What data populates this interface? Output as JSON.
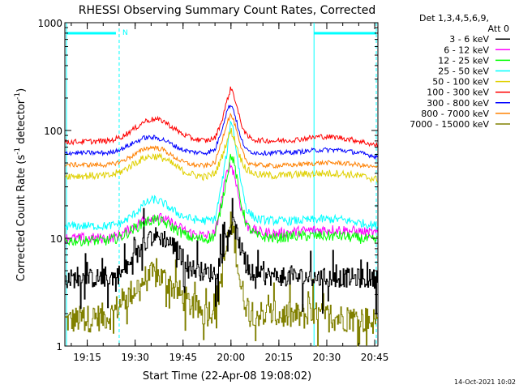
{
  "chart_data": {
    "type": "line",
    "title": "RHESSI Observing Summary Count Rates, Corrected",
    "xlabel": "Start Time (22-Apr-08 19:08:02)",
    "ylabel_main": "Corrected Count Rate (s",
    "ylabel_mid": " detector",
    "ylabel_sup": "-1",
    "ylabel_end": ")",
    "footer": "14-Oct-2021 10:02",
    "yscale": "log",
    "ylim": [
      1,
      1000
    ],
    "xlim_minutes": [
      0,
      98
    ],
    "y_ticks": [
      {
        "value": 1,
        "label": "1"
      },
      {
        "value": 10,
        "label": "10"
      },
      {
        "value": 100,
        "label": "100"
      },
      {
        "value": 1000,
        "label": "1000"
      }
    ],
    "x_ticks": [
      {
        "minute": 7,
        "label": "19:15"
      },
      {
        "minute": 22,
        "label": "19:30"
      },
      {
        "minute": 37,
        "label": "19:45"
      },
      {
        "minute": 52,
        "label": "20:00"
      },
      {
        "minute": 67,
        "label": "20:15"
      },
      {
        "minute": 82,
        "label": "20:30"
      },
      {
        "minute": 97,
        "label": "20:45"
      }
    ],
    "legend_header": [
      "Det 1,3,4,5,6,9,",
      "Att 0"
    ],
    "night_marker": {
      "label": "N",
      "start_minute": 0.5,
      "end_minute": 17,
      "second_start_minute": 78,
      "second_end_minute": 98
    },
    "series": [
      {
        "name": "3 - 6 keV",
        "color": "#000000",
        "profile": [
          [
            0,
            4.2
          ],
          [
            14,
            4.3
          ],
          [
            18,
            4.8
          ],
          [
            22,
            6.5
          ],
          [
            25,
            9.5
          ],
          [
            28,
            10.5
          ],
          [
            31,
            10
          ],
          [
            34,
            8.5
          ],
          [
            37,
            6.5
          ],
          [
            40,
            5.2
          ],
          [
            44,
            4.8
          ],
          [
            47,
            4.8
          ],
          [
            49,
            7
          ],
          [
            51,
            12
          ],
          [
            53,
            13
          ],
          [
            55,
            8
          ],
          [
            57,
            5
          ],
          [
            60,
            4.5
          ],
          [
            70,
            4.4
          ],
          [
            80,
            4.3
          ],
          [
            90,
            4.3
          ],
          [
            98,
            4.2
          ]
        ],
        "noise": 0.09
      },
      {
        "name": "6 - 12 keV",
        "color": "#ff00ff",
        "profile": [
          [
            0,
            10
          ],
          [
            14,
            10
          ],
          [
            18,
            11
          ],
          [
            22,
            13
          ],
          [
            25,
            15
          ],
          [
            28,
            16
          ],
          [
            31,
            15
          ],
          [
            34,
            13.5
          ],
          [
            37,
            12
          ],
          [
            40,
            11
          ],
          [
            44,
            10.5
          ],
          [
            47,
            11
          ],
          [
            49,
            22
          ],
          [
            51,
            45
          ],
          [
            52,
            48
          ],
          [
            53,
            40
          ],
          [
            55,
            20
          ],
          [
            57,
            13
          ],
          [
            60,
            11.5
          ],
          [
            66,
            11
          ],
          [
            72,
            11.5
          ],
          [
            80,
            12
          ],
          [
            86,
            12
          ],
          [
            92,
            11.5
          ],
          [
            98,
            11
          ]
        ],
        "noise": 0.05
      },
      {
        "name": "12 - 25 keV",
        "color": "#00ff00",
        "profile": [
          [
            0,
            9.5
          ],
          [
            14,
            9.5
          ],
          [
            18,
            10.5
          ],
          [
            22,
            12.5
          ],
          [
            25,
            14
          ],
          [
            28,
            15
          ],
          [
            31,
            14
          ],
          [
            34,
            12.5
          ],
          [
            37,
            11
          ],
          [
            40,
            10
          ],
          [
            44,
            9.8
          ],
          [
            47,
            10.5
          ],
          [
            49,
            20
          ],
          [
            51,
            42
          ],
          [
            52,
            60
          ],
          [
            53,
            50
          ],
          [
            55,
            22
          ],
          [
            57,
            13
          ],
          [
            60,
            10.5
          ],
          [
            66,
            10
          ],
          [
            72,
            10.5
          ],
          [
            80,
            10.5
          ],
          [
            86,
            10.5
          ],
          [
            92,
            10
          ],
          [
            98,
            9.5
          ]
        ],
        "noise": 0.05
      },
      {
        "name": "25 - 50 keV",
        "color": "#00ffff",
        "profile": [
          [
            0,
            13
          ],
          [
            14,
            13
          ],
          [
            18,
            14
          ],
          [
            22,
            17
          ],
          [
            25,
            21
          ],
          [
            28,
            23
          ],
          [
            31,
            21
          ],
          [
            34,
            18
          ],
          [
            37,
            16
          ],
          [
            40,
            15
          ],
          [
            44,
            14.5
          ],
          [
            47,
            15
          ],
          [
            49,
            30
          ],
          [
            51,
            70
          ],
          [
            52,
            130
          ],
          [
            53,
            90
          ],
          [
            55,
            35
          ],
          [
            57,
            18
          ],
          [
            60,
            15
          ],
          [
            66,
            14.5
          ],
          [
            72,
            14.5
          ],
          [
            80,
            15
          ],
          [
            86,
            15
          ],
          [
            92,
            14
          ],
          [
            98,
            13
          ]
        ],
        "noise": 0.04
      },
      {
        "name": "50 - 100 keV",
        "color": "#e0d000",
        "profile": [
          [
            0,
            38
          ],
          [
            14,
            38
          ],
          [
            18,
            42
          ],
          [
            22,
            50
          ],
          [
            25,
            56
          ],
          [
            28,
            58
          ],
          [
            31,
            55
          ],
          [
            34,
            48
          ],
          [
            37,
            42
          ],
          [
            40,
            39
          ],
          [
            44,
            37
          ],
          [
            47,
            40
          ],
          [
            49,
            55
          ],
          [
            51,
            85
          ],
          [
            52,
            100
          ],
          [
            53,
            85
          ],
          [
            55,
            55
          ],
          [
            57,
            43
          ],
          [
            60,
            39
          ],
          [
            66,
            38
          ],
          [
            72,
            39
          ],
          [
            80,
            40
          ],
          [
            86,
            40
          ],
          [
            92,
            38
          ],
          [
            98,
            35
          ]
        ],
        "noise": 0.035
      },
      {
        "name": "100 - 300 keV",
        "color": "#ff0000",
        "profile": [
          [
            0,
            78
          ],
          [
            14,
            80
          ],
          [
            18,
            88
          ],
          [
            22,
            105
          ],
          [
            25,
            122
          ],
          [
            28,
            128
          ],
          [
            31,
            122
          ],
          [
            34,
            105
          ],
          [
            37,
            92
          ],
          [
            40,
            84
          ],
          [
            44,
            80
          ],
          [
            47,
            85
          ],
          [
            49,
            120
          ],
          [
            51,
            200
          ],
          [
            52,
            250
          ],
          [
            53,
            210
          ],
          [
            55,
            120
          ],
          [
            57,
            88
          ],
          [
            60,
            81
          ],
          [
            66,
            80
          ],
          [
            72,
            82
          ],
          [
            80,
            88
          ],
          [
            86,
            86
          ],
          [
            92,
            80
          ],
          [
            98,
            72
          ]
        ],
        "noise": 0.025
      },
      {
        "name": "300 - 800 keV",
        "color": "#0000ff",
        "profile": [
          [
            0,
            62
          ],
          [
            14,
            62
          ],
          [
            18,
            68
          ],
          [
            22,
            78
          ],
          [
            25,
            86
          ],
          [
            28,
            86
          ],
          [
            31,
            82
          ],
          [
            34,
            73
          ],
          [
            37,
            66
          ],
          [
            40,
            63
          ],
          [
            44,
            62
          ],
          [
            47,
            66
          ],
          [
            49,
            100
          ],
          [
            51,
            160
          ],
          [
            52,
            175
          ],
          [
            53,
            150
          ],
          [
            55,
            85
          ],
          [
            57,
            65
          ],
          [
            60,
            62
          ],
          [
            66,
            62
          ],
          [
            72,
            63
          ],
          [
            80,
            66
          ],
          [
            86,
            66
          ],
          [
            92,
            62
          ],
          [
            98,
            57
          ]
        ],
        "noise": 0.022
      },
      {
        "name": "800 - 7000 keV",
        "color": "#ff8000",
        "profile": [
          [
            0,
            48
          ],
          [
            14,
            48
          ],
          [
            18,
            52
          ],
          [
            22,
            60
          ],
          [
            25,
            68
          ],
          [
            28,
            70
          ],
          [
            31,
            66
          ],
          [
            34,
            57
          ],
          [
            37,
            51
          ],
          [
            40,
            48
          ],
          [
            44,
            47
          ],
          [
            47,
            50
          ],
          [
            49,
            78
          ],
          [
            51,
            125
          ],
          [
            52,
            140
          ],
          [
            53,
            120
          ],
          [
            55,
            70
          ],
          [
            57,
            51
          ],
          [
            60,
            48
          ],
          [
            66,
            47
          ],
          [
            72,
            48
          ],
          [
            80,
            50
          ],
          [
            86,
            50
          ],
          [
            92,
            48
          ],
          [
            98,
            45
          ]
        ],
        "noise": 0.022
      },
      {
        "name": "7000 - 15000 keV",
        "color": "#808000",
        "profile": [
          [
            0,
            1.7
          ],
          [
            14,
            1.9
          ],
          [
            18,
            2.6
          ],
          [
            22,
            3.4
          ],
          [
            25,
            4.2
          ],
          [
            28,
            4.6
          ],
          [
            31,
            4.2
          ],
          [
            34,
            3.5
          ],
          [
            37,
            2.8
          ],
          [
            40,
            2.3
          ],
          [
            44,
            2.0
          ],
          [
            47,
            2.3
          ],
          [
            49,
            4.5
          ],
          [
            51,
            10
          ],
          [
            52,
            14
          ],
          [
            53,
            10
          ],
          [
            55,
            3.5
          ],
          [
            57,
            2.3
          ],
          [
            60,
            2.0
          ],
          [
            70,
            1.9
          ],
          [
            80,
            1.9
          ],
          [
            90,
            1.8
          ],
          [
            98,
            1.7
          ]
        ],
        "noise": 0.13,
        "floor": 1.0
      }
    ]
  }
}
